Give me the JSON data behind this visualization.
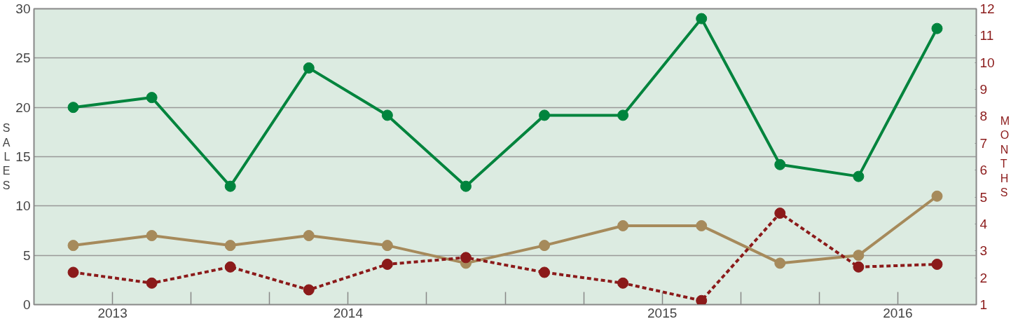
{
  "chart_data": {
    "type": "line",
    "ylabel": "SALES",
    "y2label": "MONTHS",
    "categories": [
      null,
      null,
      null,
      null,
      null,
      null,
      null,
      null,
      null,
      null,
      null,
      null
    ],
    "annotations": [
      "2013",
      "2014",
      "2015",
      "2016"
    ],
    "ylim": [
      0,
      30
    ],
    "yticks": [
      0,
      5,
      10,
      15,
      20,
      25,
      30
    ],
    "y2lim": [
      1,
      12
    ],
    "y2ticks": [
      1,
      2,
      3,
      4,
      5,
      6,
      7,
      8,
      9,
      10,
      11,
      12
    ],
    "grid": "y",
    "marker": "circle",
    "series": [
      {
        "color": "#00843d",
        "line_style": "solid",
        "values": [
          20,
          21,
          12,
          24,
          19.2,
          12,
          19.2,
          19.2,
          29,
          14.2,
          13,
          28
        ]
      },
      {
        "color": "#a68a5b",
        "line_style": "solid",
        "values": [
          6,
          7,
          6,
          7,
          6,
          4.2,
          6,
          8,
          8,
          4.2,
          5,
          11
        ]
      },
      {
        "color": "#8b1a1a",
        "line_style": "dashed",
        "axis": "y2",
        "values": [
          2.2,
          1.8,
          2.4,
          1.55,
          2.5,
          2.75,
          2.2,
          1.8,
          1.15,
          4.4,
          2.4,
          2.5
        ]
      }
    ]
  }
}
